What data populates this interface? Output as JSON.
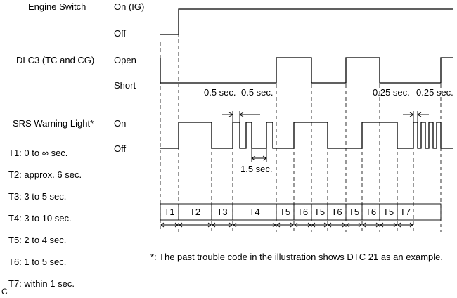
{
  "signals": {
    "engine_switch": {
      "label": "Engine Switch",
      "high": "On (IG)",
      "low": "Off"
    },
    "dlc3": {
      "label": "DLC3 (TC and CG)",
      "high": "Open",
      "low": "Short"
    },
    "srs": {
      "label": "SRS Warning Light*",
      "high": "On",
      "low": "Off"
    }
  },
  "durations": {
    "half_sec_1": "0.5 sec.",
    "half_sec_2": "0.5 sec.",
    "quarter_sec_1": "0.25 sec.",
    "quarter_sec_2": "0.25 sec.",
    "one_half_sec": "1.5 sec."
  },
  "legend": [
    "T1: 0 to ∞ sec.",
    "T2: approx. 6 sec.",
    "T3: 3 to 5 sec.",
    "T4: 3 to 10 sec.",
    "T5: 2 to 4 sec.",
    "T6: 1 to 5 sec.",
    "T7: within 1 sec."
  ],
  "intervals": [
    "T1",
    "T2",
    "T3",
    "T4",
    "T5",
    "T6",
    "T5",
    "T6",
    "T5",
    "T6",
    "T5",
    "T7"
  ],
  "footnote": "*: The past trouble code in the illustration shows DTC 21 as an example.",
  "corner_mark": "C"
}
